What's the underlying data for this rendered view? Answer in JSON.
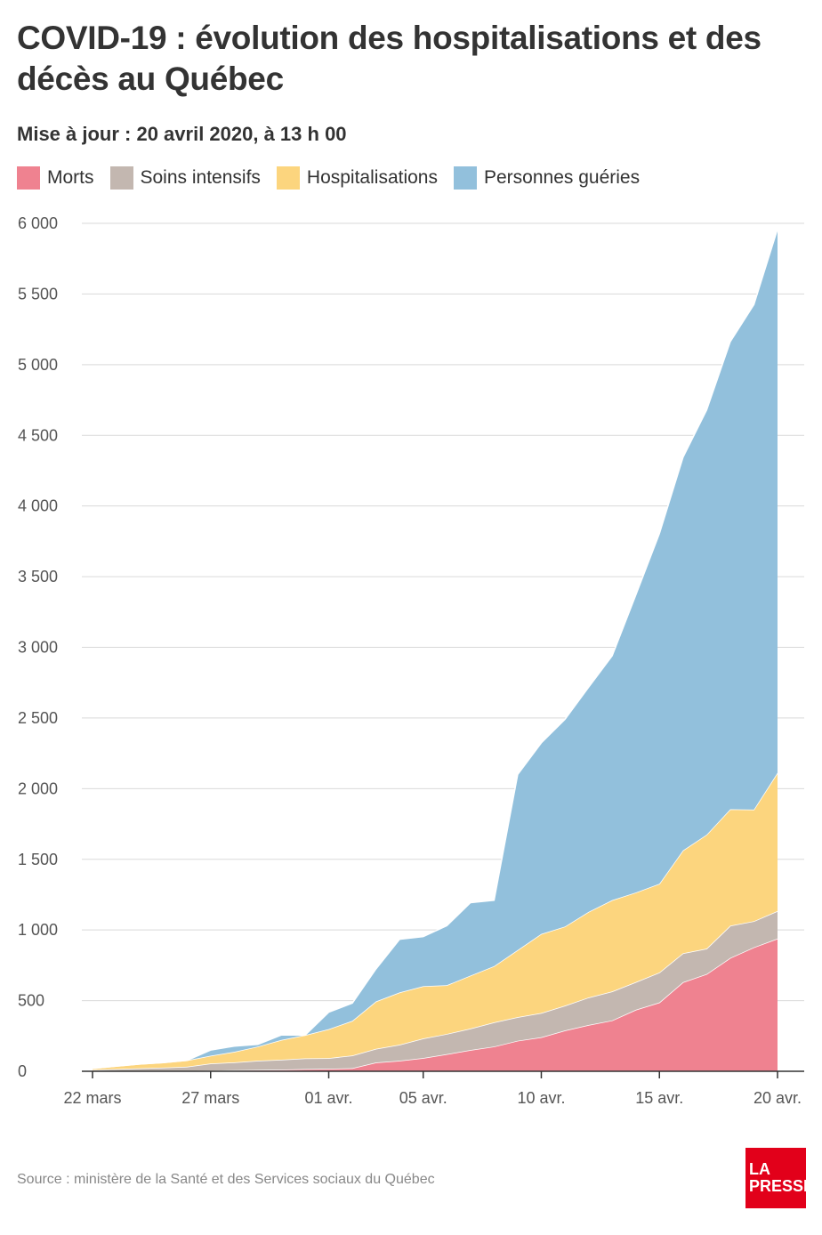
{
  "title": "COVID-19 : évolution des hospitalisations et des décès au Québec",
  "subtitle": "Mise à jour : 20 avril 2020, à 13 h 00",
  "source": "Source : ministère de la Santé et des Services sociaux du Québec",
  "logo": {
    "line1": "LA",
    "line2": "PRESSE"
  },
  "chart_data": {
    "type": "area",
    "stacked": true,
    "ylim": [
      0,
      6000
    ],
    "y_ticks": [
      0,
      500,
      1000,
      1500,
      2000,
      2500,
      3000,
      3500,
      4000,
      4500,
      5000,
      5500,
      6000
    ],
    "y_tick_labels": [
      "0",
      "500",
      "1 000",
      "1 500",
      "2 000",
      "2 500",
      "3 000",
      "3 500",
      "4 000",
      "4 500",
      "5 000",
      "5 500",
      "6 000"
    ],
    "x_tick_labels": [
      {
        "label": "22 mars",
        "date": "2020-03-22"
      },
      {
        "label": "27 mars",
        "date": "2020-03-27"
      },
      {
        "label": "01 avr.",
        "date": "2020-04-01"
      },
      {
        "label": "05 avr.",
        "date": "2020-04-05"
      },
      {
        "label": "10 avr.",
        "date": "2020-04-10"
      },
      {
        "label": "15 avr.",
        "date": "2020-04-15"
      },
      {
        "label": "20 avr.",
        "date": "2020-04-20"
      }
    ],
    "x": [
      "2020-03-22",
      "2020-03-23",
      "2020-03-24",
      "2020-03-25",
      "2020-03-26",
      "2020-03-27",
      "2020-03-28",
      "2020-03-29",
      "2020-03-30",
      "2020-03-31",
      "2020-04-01",
      "2020-04-02",
      "2020-04-03",
      "2020-04-04",
      "2020-04-05",
      "2020-04-06",
      "2020-04-07",
      "2020-04-08",
      "2020-04-09",
      "2020-04-10",
      "2020-04-11",
      "2020-04-12",
      "2020-04-13",
      "2020-04-14",
      "2020-04-15",
      "2020-04-16",
      "2020-04-17",
      "2020-04-18",
      "2020-04-19",
      "2020-04-20"
    ],
    "legend_position": "top",
    "grid": true,
    "series": [
      {
        "name": "Morts",
        "color": "#ef8290",
        "values": [
          0,
          1,
          1,
          1,
          2,
          5,
          8,
          10,
          12,
          16,
          18,
          22,
          62,
          75,
          94,
          121,
          150,
          175,
          216,
          241,
          289,
          327,
          360,
          435,
          487,
          630,
          688,
          802,
          877,
          939
        ]
      },
      {
        "name": "Soins intensifs",
        "color": "#c3b7b0",
        "values": [
          10,
          15,
          20,
          25,
          30,
          50,
          55,
          65,
          70,
          75,
          75,
          90,
          97,
          113,
          138,
          143,
          152,
          171,
          167,
          171,
          175,
          195,
          205,
          196,
          212,
          205,
          180,
          228,
          185,
          195
        ]
      },
      {
        "name": "Hospitalisations",
        "color": "#fcd57e",
        "values": [
          10,
          20,
          30,
          35,
          45,
          55,
          75,
          100,
          140,
          165,
          205,
          245,
          335,
          370,
          370,
          345,
          375,
          398,
          475,
          560,
          560,
          606,
          646,
          634,
          628,
          728,
          806,
          824,
          790,
          978
        ]
      },
      {
        "name": "Personnes guéries",
        "color": "#92c0dc",
        "values": [
          0,
          0,
          0,
          0,
          0,
          40,
          40,
          15,
          35,
          0,
          120,
          125,
          230,
          376,
          351,
          421,
          516,
          466,
          1242,
          1352,
          1466,
          1589,
          1729,
          2105,
          2478,
          2782,
          3006,
          3309,
          3573,
          3848
        ]
      }
    ]
  }
}
